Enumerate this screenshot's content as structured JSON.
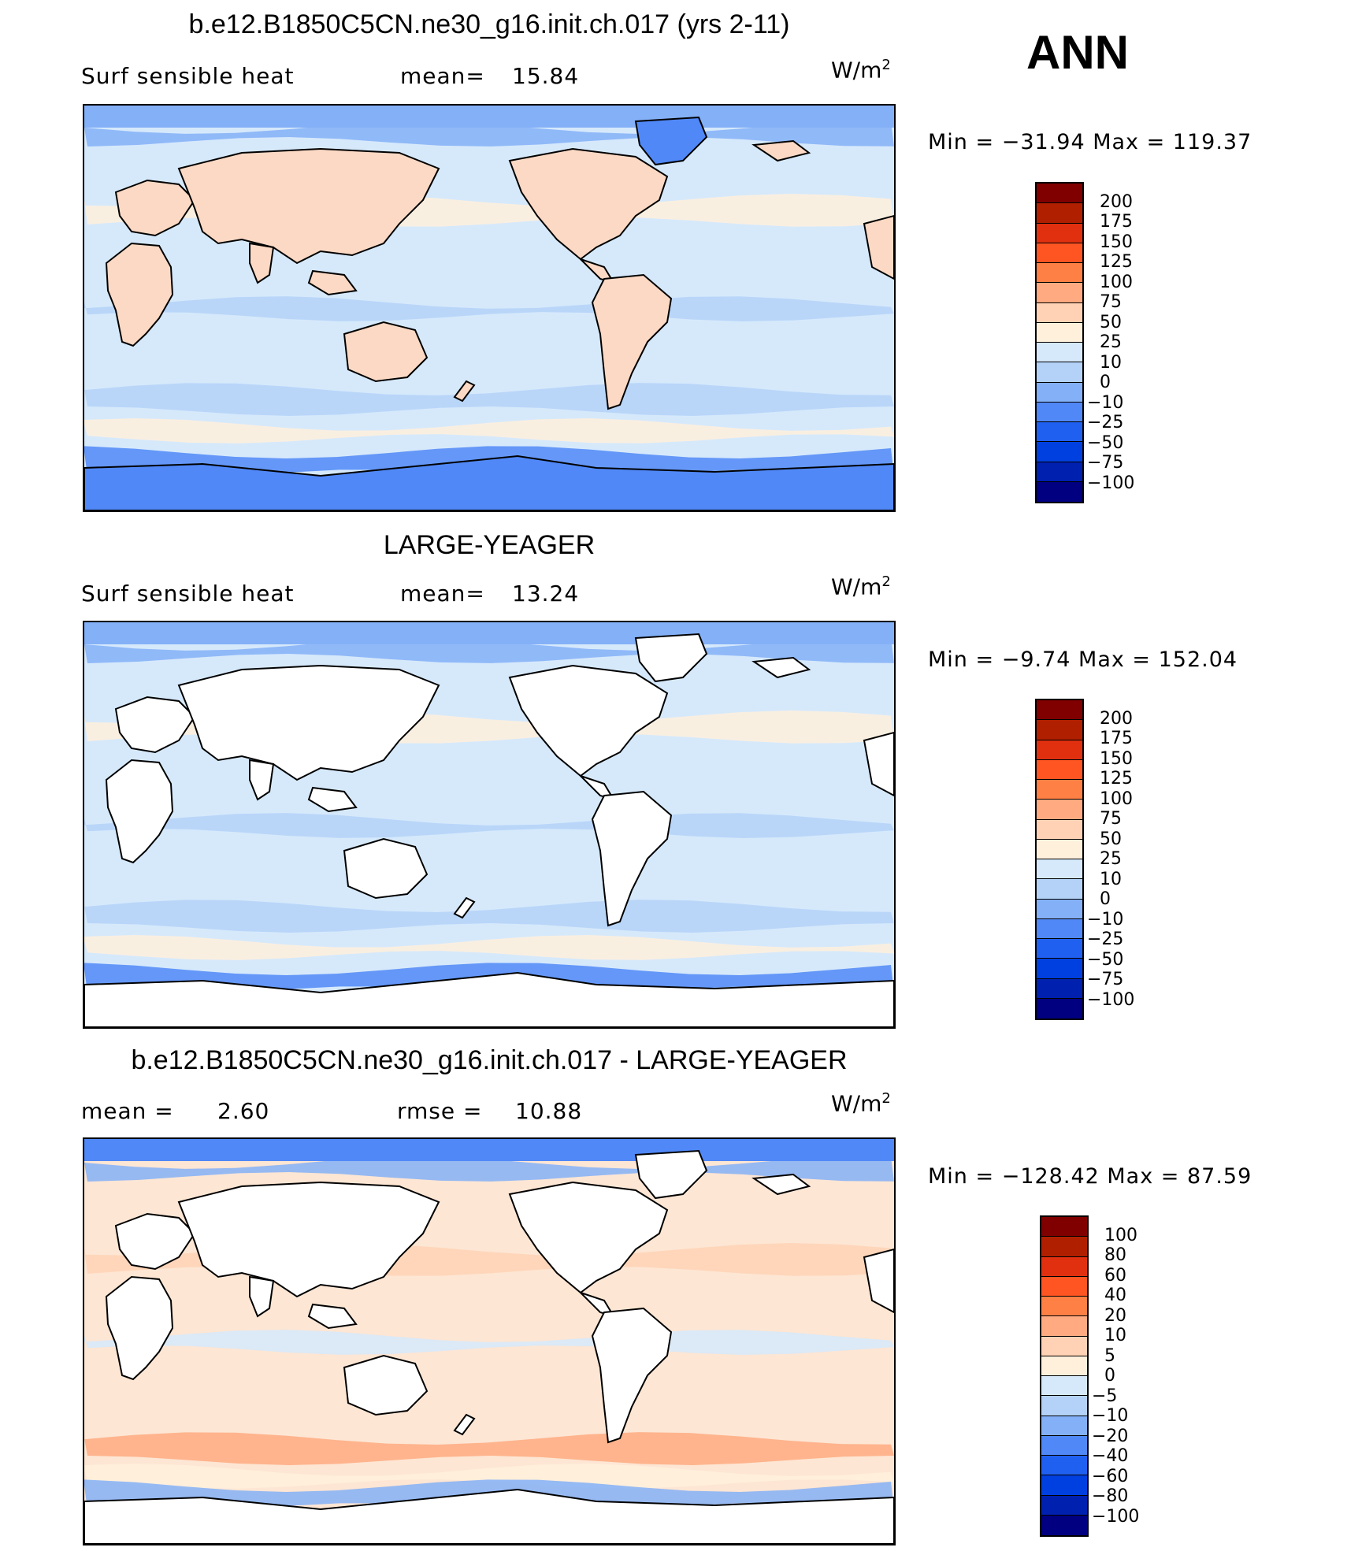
{
  "ann_label": "ANN",
  "panels": [
    {
      "title": "b.e12.B1850C5CN.ne30_g16.init.ch.017 (yrs 2-11)",
      "left_label": "Surf  sensible  heat",
      "stat_label": "mean=",
      "stat_value": "15.84",
      "units_base": "W/m",
      "units_exp": "2",
      "minmax": "Min  =  −31.94  Max  =  119.37",
      "ocean_color": "#d6e9fb",
      "land_color": "#fcd9c4",
      "colorbar": {
        "colors": [
          "#800000",
          "#b02000",
          "#e03010",
          "#ff5522",
          "#ff8044",
          "#ffaa80",
          "#ffd2b5",
          "#fff0dc",
          "#d6e9fb",
          "#b4d2f8",
          "#84b0f7",
          "#5088f7",
          "#2060f0",
          "#0040e0",
          "#0020b0",
          "#000080"
        ],
        "labels": [
          "200",
          "175",
          "150",
          "125",
          "100",
          "75",
          "50",
          "25",
          "10",
          "0",
          "−10",
          "−25",
          "−50",
          "−75",
          "−100"
        ]
      }
    },
    {
      "title": "LARGE-YEAGER",
      "left_label": "Surf  sensible  heat",
      "stat_label": "mean=",
      "stat_value": "13.24",
      "units_base": "W/m",
      "units_exp": "2",
      "minmax": "Min  =   −9.74  Max  =  152.04",
      "ocean_color": "#d6e9fb",
      "land_color": "#ffffff",
      "colorbar": {
        "colors": [
          "#800000",
          "#b02000",
          "#e03010",
          "#ff5522",
          "#ff8044",
          "#ffaa80",
          "#ffd2b5",
          "#fff0dc",
          "#d6e9fb",
          "#b4d2f8",
          "#84b0f7",
          "#5088f7",
          "#2060f0",
          "#0040e0",
          "#0020b0",
          "#000080"
        ],
        "labels": [
          "200",
          "175",
          "150",
          "125",
          "100",
          "75",
          "50",
          "25",
          "10",
          "0",
          "−10",
          "−25",
          "−50",
          "−75",
          "−100"
        ]
      }
    },
    {
      "title": "b.e12.B1850C5CN.ne30_g16.init.ch.017 - LARGE-YEAGER",
      "left_label": "mean  =",
      "left_value": "2.60",
      "stat_label": "rmse  =",
      "stat_value": "10.88",
      "units_base": "W/m",
      "units_exp": "2",
      "minmax": "Min  =  −128.42  Max  =   87.59",
      "ocean_color": "#fde6d4",
      "land_color": "#ffffff",
      "colorbar": {
        "colors": [
          "#800000",
          "#b02000",
          "#e03010",
          "#ff5522",
          "#ff8044",
          "#ffaa80",
          "#ffd2b5",
          "#fff0dc",
          "#d6e9fb",
          "#b4d2f8",
          "#84b0f7",
          "#5088f7",
          "#2060f0",
          "#0040e0",
          "#0020b0",
          "#000080"
        ],
        "labels": [
          "100",
          "80",
          "60",
          "40",
          "20",
          "10",
          "5",
          "0",
          "−5",
          "−10",
          "−20",
          "−40",
          "−60",
          "−80",
          "−100"
        ]
      }
    }
  ]
}
